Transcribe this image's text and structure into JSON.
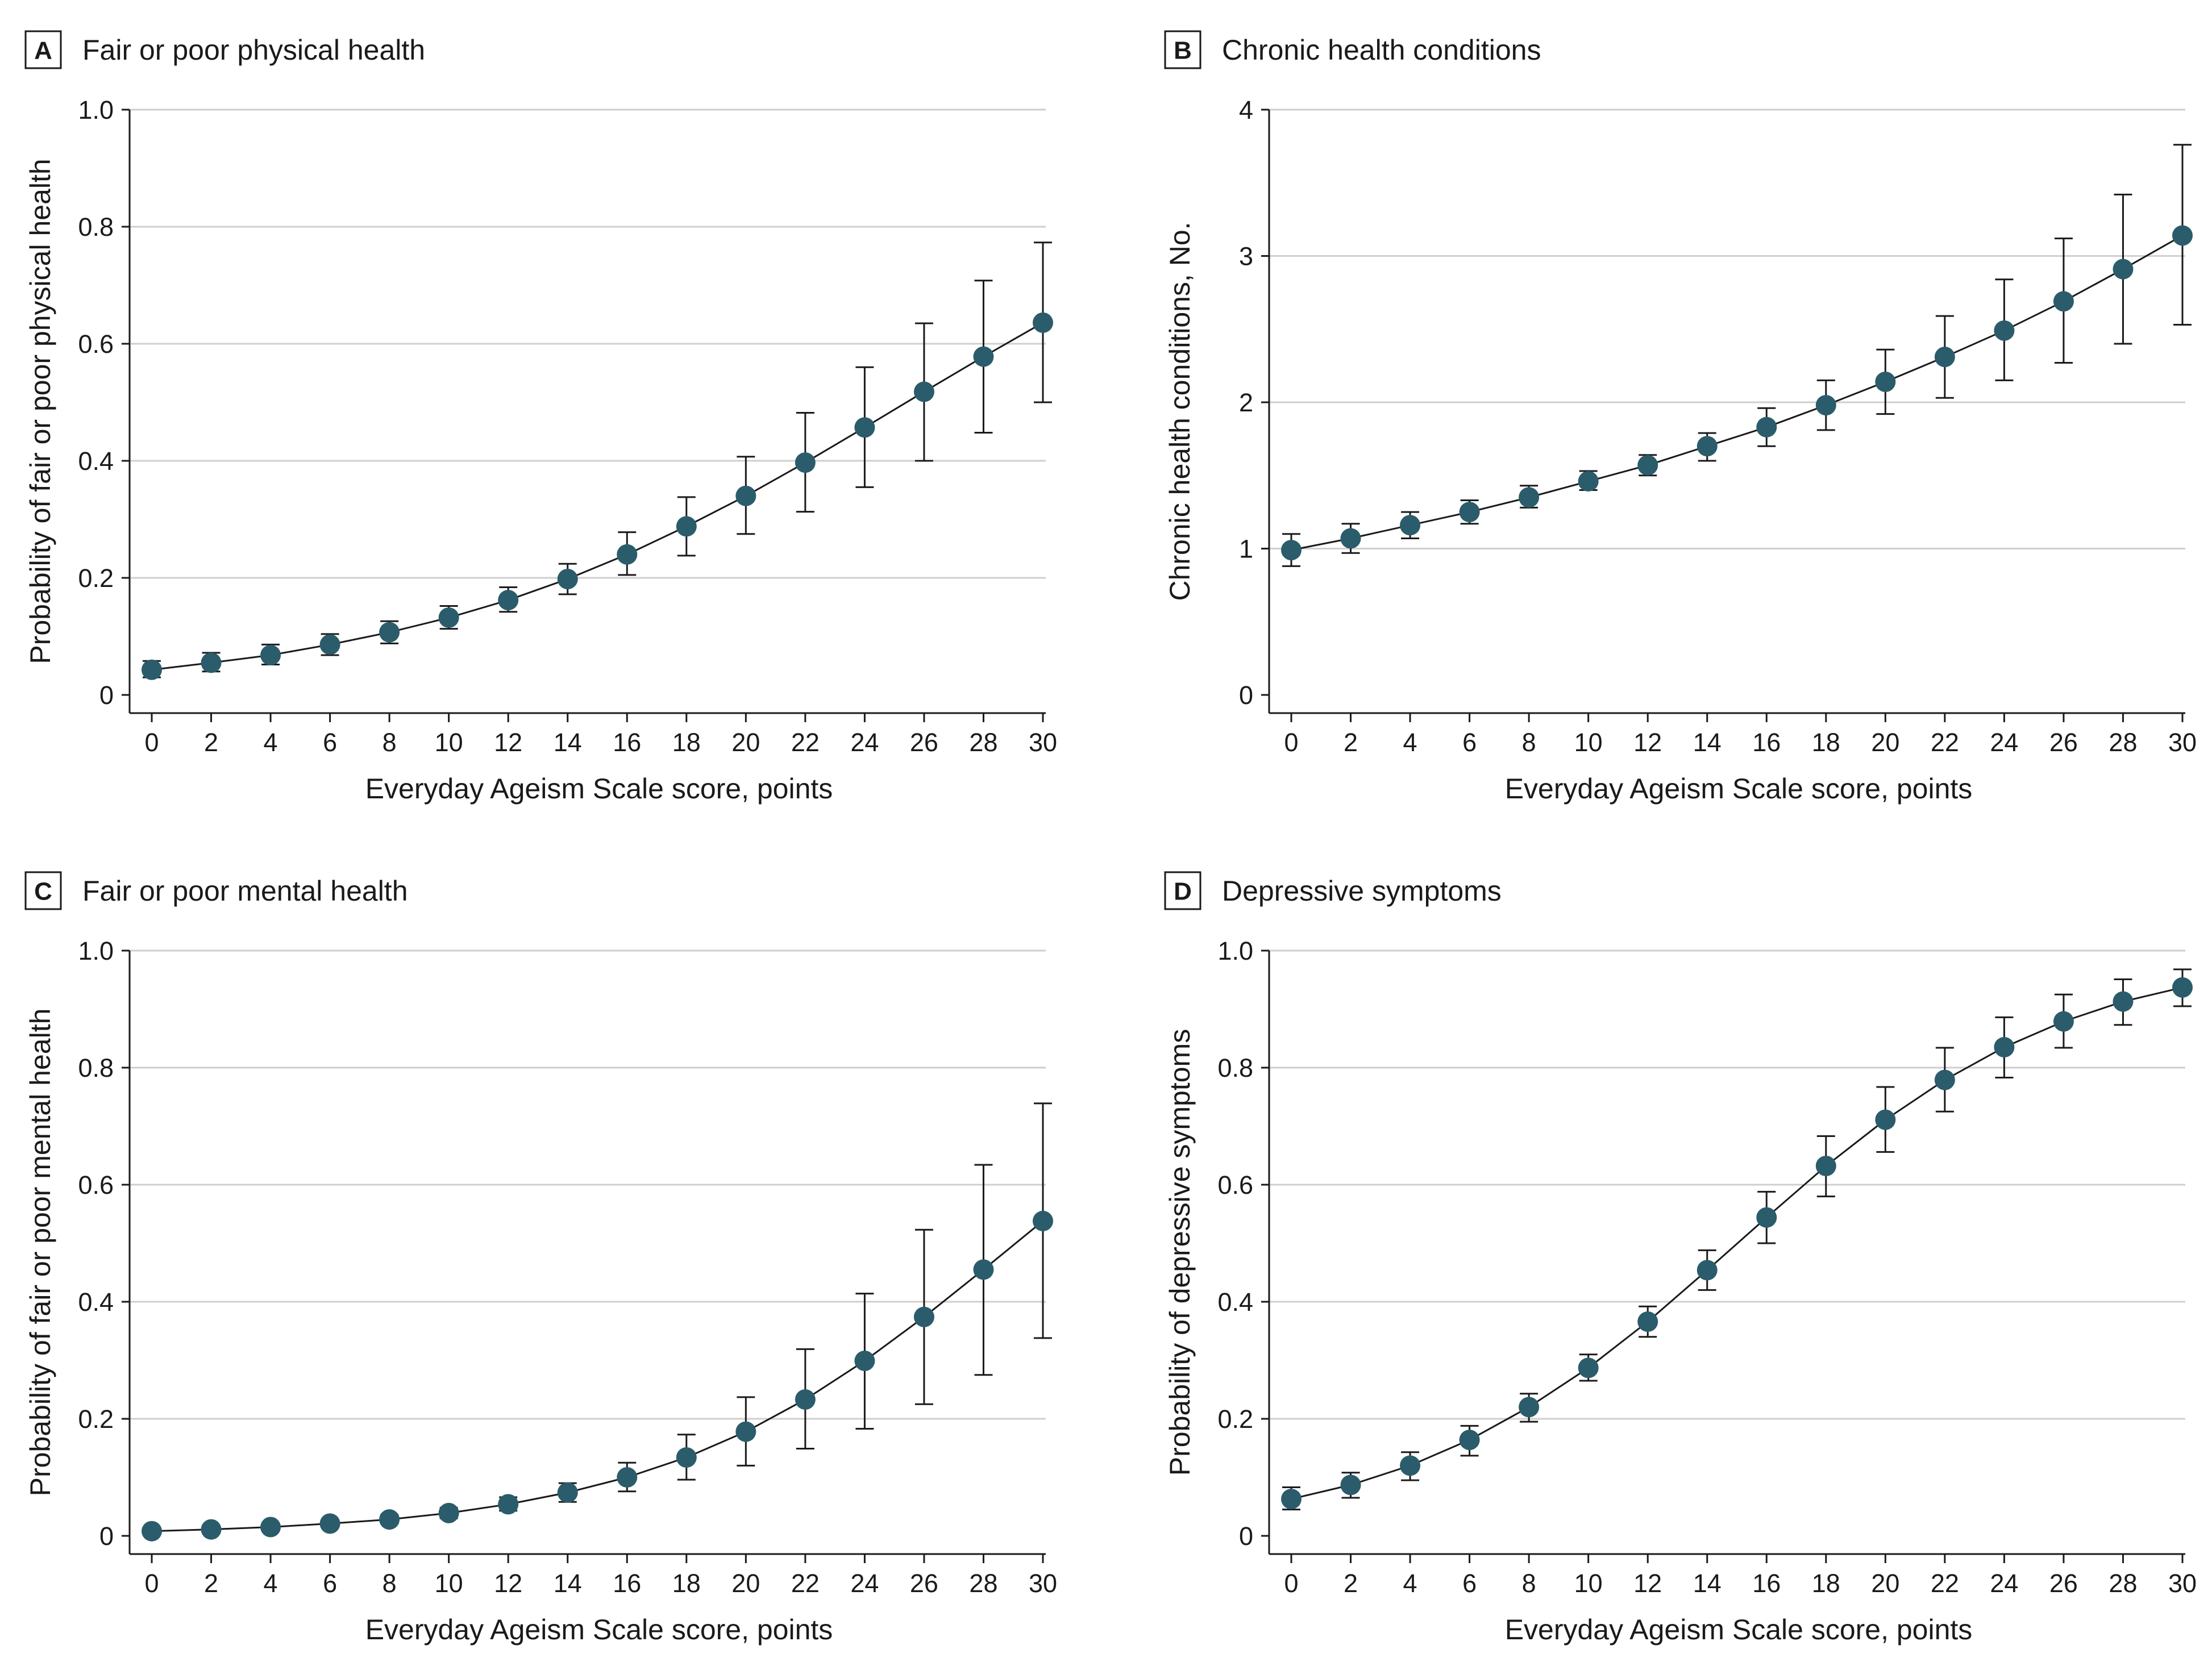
{
  "figure": {
    "colors": {
      "marker": "#2b5c6b",
      "line": "#1a1a1a",
      "grid": "#cfcfcf"
    }
  },
  "chart_data": [
    {
      "panel": "A",
      "title": "Fair or poor physical health",
      "type": "line",
      "xlabel": "Everyday Ageism Scale score, points",
      "ylabel": "Probability of fair or poor physical health",
      "x": [
        0,
        2,
        4,
        6,
        8,
        10,
        12,
        14,
        16,
        18,
        20,
        22,
        24,
        26,
        28,
        30
      ],
      "xticks": [
        "0",
        "2",
        "4",
        "6",
        "8",
        "10",
        "12",
        "14",
        "16",
        "18",
        "20",
        "22",
        "24",
        "26",
        "28",
        "30"
      ],
      "xlim": [
        0,
        30
      ],
      "ylim": [
        0,
        1
      ],
      "yticks": [
        0,
        0.2,
        0.4,
        0.6,
        0.8,
        1.0
      ],
      "ytick_labels": [
        "0",
        "0.2",
        "0.4",
        "0.6",
        "0.8",
        "1.0"
      ],
      "values": [
        0.043,
        0.055,
        0.068,
        0.086,
        0.107,
        0.132,
        0.162,
        0.198,
        0.24,
        0.288,
        0.34,
        0.397,
        0.457,
        0.518,
        0.578,
        0.636
      ],
      "lower": [
        0.03,
        0.04,
        0.052,
        0.068,
        0.088,
        0.113,
        0.142,
        0.172,
        0.205,
        0.238,
        0.275,
        0.313,
        0.355,
        0.4,
        0.448,
        0.5
      ],
      "upper": [
        0.058,
        0.072,
        0.086,
        0.104,
        0.126,
        0.152,
        0.184,
        0.224,
        0.278,
        0.338,
        0.407,
        0.482,
        0.56,
        0.635,
        0.708,
        0.773
      ]
    },
    {
      "panel": "B",
      "title": "Chronic health conditions",
      "type": "line",
      "xlabel": "Everyday Ageism Scale score, points",
      "ylabel": "Chronic health conditions, No.",
      "x": [
        0,
        2,
        4,
        6,
        8,
        10,
        12,
        14,
        16,
        18,
        20,
        22,
        24,
        26,
        28,
        30
      ],
      "xticks": [
        "0",
        "2",
        "4",
        "6",
        "8",
        "10",
        "12",
        "14",
        "16",
        "18",
        "20",
        "22",
        "24",
        "26",
        "28",
        "30"
      ],
      "xlim": [
        0,
        30
      ],
      "ylim": [
        0,
        4
      ],
      "yticks": [
        0,
        1,
        2,
        3,
        4
      ],
      "ytick_labels": [
        "0",
        "1",
        "2",
        "3",
        "4"
      ],
      "values": [
        0.99,
        1.07,
        1.16,
        1.25,
        1.35,
        1.46,
        1.57,
        1.7,
        1.83,
        1.98,
        2.14,
        2.31,
        2.49,
        2.69,
        2.91,
        3.14
      ],
      "lower": [
        0.88,
        0.97,
        1.07,
        1.17,
        1.28,
        1.4,
        1.5,
        1.6,
        1.7,
        1.81,
        1.92,
        2.03,
        2.15,
        2.27,
        2.4,
        2.53
      ],
      "upper": [
        1.1,
        1.17,
        1.25,
        1.33,
        1.43,
        1.53,
        1.64,
        1.79,
        1.96,
        2.15,
        2.36,
        2.59,
        2.84,
        3.12,
        3.42,
        3.76
      ]
    },
    {
      "panel": "C",
      "title": "Fair or poor mental health",
      "type": "line",
      "xlabel": "Everyday Ageism Scale score, points",
      "ylabel": "Probability of fair or poor mental health",
      "x": [
        0,
        2,
        4,
        6,
        8,
        10,
        12,
        14,
        16,
        18,
        20,
        22,
        24,
        26,
        28,
        30
      ],
      "xticks": [
        "0",
        "2",
        "4",
        "6",
        "8",
        "10",
        "12",
        "14",
        "16",
        "18",
        "20",
        "22",
        "24",
        "26",
        "28",
        "30"
      ],
      "xlim": [
        0,
        30
      ],
      "ylim": [
        0,
        1
      ],
      "yticks": [
        0,
        0.2,
        0.4,
        0.6,
        0.8,
        1.0
      ],
      "ytick_labels": [
        "0",
        "0.2",
        "0.4",
        "0.6",
        "0.8",
        "1.0"
      ],
      "values": [
        0.008,
        0.011,
        0.015,
        0.021,
        0.028,
        0.039,
        0.054,
        0.074,
        0.1,
        0.134,
        0.178,
        0.233,
        0.299,
        0.374,
        0.455,
        0.538
      ],
      "lower": [
        0.004,
        0.007,
        0.01,
        0.015,
        0.021,
        0.03,
        0.043,
        0.058,
        0.076,
        0.096,
        0.12,
        0.149,
        0.183,
        0.225,
        0.275,
        0.338
      ],
      "upper": [
        0.012,
        0.015,
        0.02,
        0.027,
        0.036,
        0.048,
        0.066,
        0.09,
        0.125,
        0.173,
        0.237,
        0.319,
        0.414,
        0.523,
        0.634,
        0.739
      ]
    },
    {
      "panel": "D",
      "title": "Depressive symptoms",
      "type": "line",
      "xlabel": "Everyday Ageism Scale score, points",
      "ylabel": "Probability of depressive symptoms",
      "x": [
        0,
        2,
        4,
        6,
        8,
        10,
        12,
        14,
        16,
        18,
        20,
        22,
        24,
        26,
        28,
        30
      ],
      "xticks": [
        "0",
        "2",
        "4",
        "6",
        "8",
        "10",
        "12",
        "14",
        "16",
        "18",
        "20",
        "22",
        "24",
        "26",
        "28",
        "30"
      ],
      "xlim": [
        0,
        30
      ],
      "ylim": [
        0,
        1
      ],
      "yticks": [
        0,
        0.2,
        0.4,
        0.6,
        0.8,
        1.0
      ],
      "ytick_labels": [
        "0",
        "0.2",
        "0.4",
        "0.6",
        "0.8",
        "1.0"
      ],
      "values": [
        0.063,
        0.087,
        0.12,
        0.164,
        0.22,
        0.287,
        0.366,
        0.454,
        0.544,
        0.632,
        0.711,
        0.779,
        0.835,
        0.879,
        0.913,
        0.937
      ],
      "lower": [
        0.045,
        0.065,
        0.095,
        0.137,
        0.195,
        0.265,
        0.34,
        0.42,
        0.5,
        0.58,
        0.656,
        0.725,
        0.783,
        0.834,
        0.873,
        0.905
      ],
      "upper": [
        0.083,
        0.108,
        0.143,
        0.188,
        0.243,
        0.31,
        0.392,
        0.488,
        0.588,
        0.683,
        0.767,
        0.834,
        0.886,
        0.925,
        0.951,
        0.968
      ]
    }
  ]
}
